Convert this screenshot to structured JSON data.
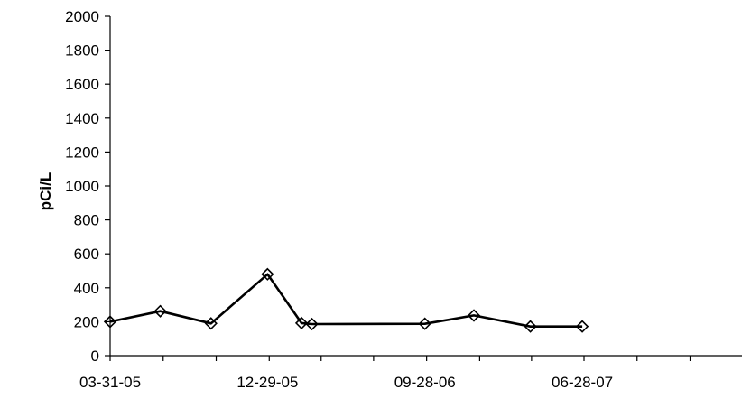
{
  "chart_data": {
    "type": "line",
    "title": "",
    "xlabel": "",
    "ylabel": "pCi/L",
    "ylim": [
      0,
      2000
    ],
    "y_ticks": [
      "0",
      "200",
      "400",
      "600",
      "800",
      "1000",
      "1200",
      "1400",
      "1600",
      "1800",
      "2000"
    ],
    "x_range": [
      "2005-03-31",
      "2008-03-31"
    ],
    "x_ticks": [
      {
        "date": "2005-03-31",
        "label": "03-31-05"
      },
      {
        "date": "2005-12-29",
        "label": "12-29-05"
      },
      {
        "date": "2006-09-28",
        "label": "09-28-06"
      },
      {
        "date": "2007-06-28",
        "label": "06-28-07"
      }
    ],
    "grid": false,
    "legend": "none",
    "series": [
      {
        "color": "#000000",
        "marker": "diamond",
        "x": [
          "2005-03-31",
          "2005-06-26",
          "2005-09-22",
          "2005-12-29",
          "2006-02-26",
          "2006-03-16",
          "2006-09-28",
          "2006-12-22",
          "2007-03-30",
          "2007-06-28"
        ],
        "values": [
          200,
          262,
          190,
          480,
          192,
          186,
          188,
          237,
          172,
          172
        ]
      }
    ]
  }
}
